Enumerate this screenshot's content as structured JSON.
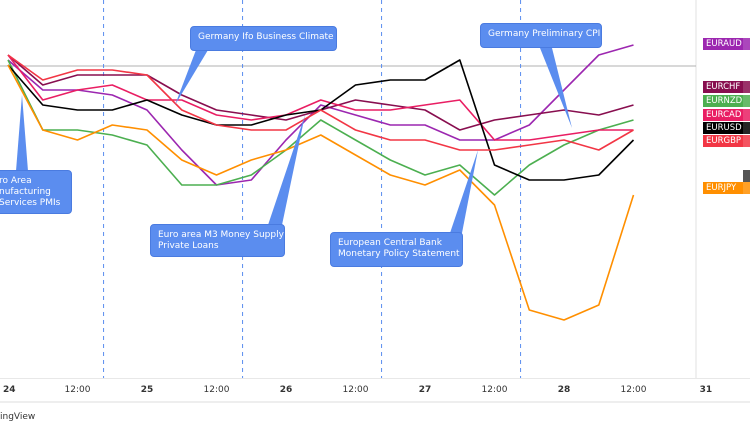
{
  "chart_data": {
    "type": "line",
    "title": "",
    "xlabel": "",
    "ylabel": "",
    "x_hours_from_24th": [
      0,
      6,
      12,
      18,
      24,
      30,
      36,
      42,
      48,
      54,
      60,
      66,
      72,
      78,
      84,
      90,
      96,
      102,
      108
    ],
    "ylim": [
      0,
      400
    ],
    "series": [
      {
        "name": "EURAUD",
        "color": "#9C27B0",
        "values": [
          340,
          310,
          310,
          305,
          290,
          250,
          215,
          220,
          260,
          295,
          285,
          275,
          275,
          260,
          260,
          275,
          310,
          345,
          355
        ]
      },
      {
        "name": "EURCHF",
        "color": "#880E4F",
        "values": [
          345,
          315,
          325,
          325,
          325,
          305,
          290,
          285,
          280,
          290,
          300,
          295,
          290,
          270,
          280,
          285,
          290,
          285,
          295
        ]
      },
      {
        "name": "EURNZD",
        "color": "#4CAF50",
        "values": [
          340,
          270,
          270,
          265,
          255,
          215,
          215,
          225,
          250,
          280,
          260,
          240,
          225,
          235,
          205,
          235,
          255,
          270,
          280
        ]
      },
      {
        "name": "EURCAD",
        "color": "#E91E63",
        "values": [
          345,
          300,
          310,
          315,
          300,
          300,
          285,
          280,
          285,
          300,
          290,
          290,
          295,
          300,
          260,
          260,
          265,
          270,
          270
        ]
      },
      {
        "name": "EURUSD",
        "color": "#000000",
        "values": [
          335,
          295,
          290,
          290,
          300,
          285,
          275,
          275,
          285,
          290,
          315,
          320,
          320,
          340,
          235,
          220,
          220,
          225,
          260
        ]
      },
      {
        "name": "EURGBP",
        "color": "#F23645",
        "values": [
          345,
          320,
          330,
          330,
          325,
          290,
          275,
          270,
          270,
          290,
          270,
          260,
          260,
          250,
          250,
          255,
          260,
          250,
          270
        ]
      },
      {
        "name": "EURJPY",
        "color": "#FF8F00",
        "values": [
          335,
          270,
          260,
          275,
          270,
          240,
          225,
          240,
          250,
          265,
          245,
          225,
          215,
          230,
          195,
          90,
          80,
          95,
          205
        ]
      }
    ],
    "x_tick_labels": [
      "24",
      "12:00",
      "25",
      "12:00",
      "26",
      "12:00",
      "27",
      "12:00",
      "28",
      "12:00",
      "31"
    ],
    "annotations": [
      {
        "id": "ifo",
        "lines": [
          "Germany Ifo Business Climate"
        ]
      },
      {
        "id": "cpi",
        "lines": [
          "Germany Preliminary CPI"
        ]
      },
      {
        "id": "pmi",
        "lines": [
          "ro Area",
          "nufacturing",
          "Services PMIs"
        ]
      },
      {
        "id": "m3",
        "lines": [
          "Euro area M3 Money Supply",
          "Private Loans"
        ]
      },
      {
        "id": "ecb",
        "lines": [
          "European Central Bank",
          "Monetary Policy Statement"
        ]
      }
    ],
    "legend": "right price scale"
  },
  "watermark": "ingView"
}
